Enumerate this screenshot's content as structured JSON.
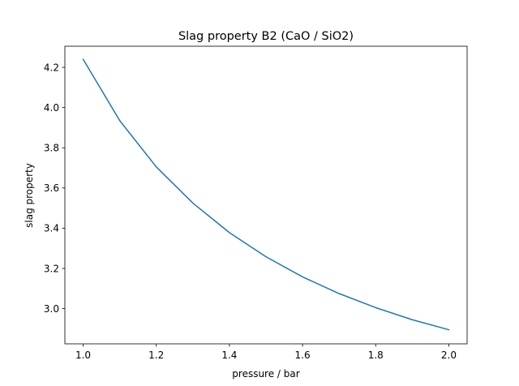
{
  "chart_data": {
    "type": "line",
    "title": "Slag property B2 (CaO / SiO2)",
    "xlabel": "pressure / bar",
    "ylabel": "slag property",
    "xlim": [
      0.95,
      2.05
    ],
    "ylim": [
      2.825,
      4.305
    ],
    "xticks": [
      "1.0",
      "1.2",
      "1.4",
      "1.6",
      "1.8",
      "2.0"
    ],
    "yticks": [
      "3.0",
      "3.2",
      "3.4",
      "3.6",
      "3.8",
      "4.0",
      "4.2"
    ],
    "grid": false,
    "series": [
      {
        "color": "#1f77b4",
        "x": [
          1.0,
          1.1,
          1.2,
          1.3,
          1.4,
          1.5,
          1.6,
          1.7,
          1.8,
          1.9,
          2.0
        ],
        "y": [
          4.24,
          3.935,
          3.705,
          3.525,
          3.378,
          3.258,
          3.158,
          3.075,
          3.005,
          2.945,
          2.895
        ]
      }
    ]
  }
}
